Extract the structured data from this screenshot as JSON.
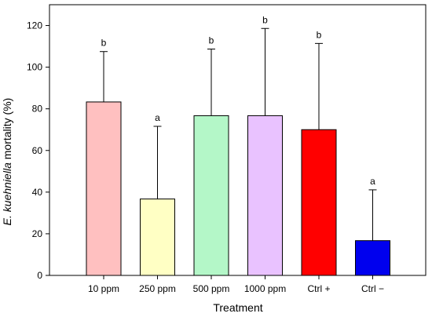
{
  "chart_data": {
    "type": "bar",
    "xlabel": "Treatment",
    "ylabel_italic": "E. kuehniella",
    "ylabel_rest": " mortality (%)",
    "categories": [
      "10 ppm",
      "250 ppm",
      "500 ppm",
      "1000 ppm",
      "Ctrl +",
      "Ctrl −"
    ],
    "values": [
      83.3,
      36.7,
      76.7,
      76.7,
      70.0,
      16.7
    ],
    "error_upper": [
      24.2,
      34.9,
      32.0,
      41.9,
      41.4,
      24.4
    ],
    "significance": [
      "b",
      "a",
      "b",
      "b",
      "b",
      "a"
    ],
    "colors": [
      "#ffc0c0",
      "#ffffc4",
      "#b4f7c8",
      "#e9c2ff",
      "#ff0000",
      "#0000ee"
    ],
    "ylim": [
      0,
      130
    ],
    "yticks": [
      0,
      20,
      40,
      60,
      80,
      100,
      120
    ],
    "grid": false
  }
}
